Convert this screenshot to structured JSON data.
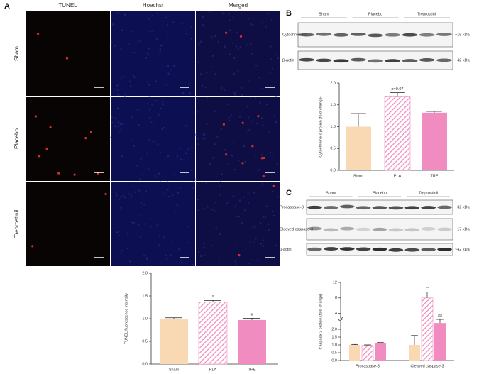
{
  "panel_labels": [
    "A",
    "B",
    "C"
  ],
  "microscopy": {
    "columns": [
      "TUNEL",
      "Hoechst",
      "Merged"
    ],
    "rows": [
      "Sham",
      "Placebo",
      "Treprostinil"
    ]
  },
  "blot_b": {
    "groups": [
      "Sham",
      "Placebo",
      "Treprostinil"
    ],
    "bands": [
      {
        "name": "Cytochrome c",
        "size": "~15 kDa"
      },
      {
        "name": "β-actin",
        "size": "~42 kDa"
      }
    ]
  },
  "blot_c": {
    "groups": [
      "Sham",
      "Placebo",
      "Treprostinil"
    ],
    "bands": [
      {
        "name": "Procaspase-3",
        "size": "~32 kDa"
      },
      {
        "name": "Cleaved caspase-3",
        "size": "~17 kDa"
      },
      {
        "name": "β-actin",
        "size": "~42 kDa"
      }
    ]
  },
  "chart_data": [
    {
      "type": "bar",
      "ylabel": "TUNEL fluorescence intensity",
      "categories": [
        "Sham",
        "PLA",
        "TRE"
      ],
      "values": [
        1.0,
        1.37,
        0.97
      ],
      "errors": [
        0.02,
        0.03,
        0.04
      ],
      "colors": [
        "#f9d8b4",
        "#f08cbf",
        "#f08cbf"
      ],
      "hatched": [
        false,
        true,
        false
      ],
      "annotations": [
        null,
        "*",
        "#"
      ],
      "ylim": [
        0,
        2
      ],
      "yticks": [
        {
          "value": 0,
          "label": "0.0"
        },
        {
          "value": 0.5,
          "label": "0.5"
        },
        {
          "value": 1,
          "label": "1.0"
        },
        {
          "value": 1.5,
          "label": "1.5"
        },
        {
          "value": 2,
          "label": "2.0"
        }
      ]
    },
    {
      "type": "bar",
      "ylabel": "Cytochrome c protein (fold-change)",
      "categories": [
        "Sham",
        "PLA",
        "TRE"
      ],
      "values": [
        1.0,
        1.7,
        1.32
      ],
      "errors": [
        0.3,
        0.08,
        0.03
      ],
      "colors": [
        "#f9d8b4",
        "#f08cbf",
        "#f08cbf"
      ],
      "hatched": [
        false,
        true,
        false
      ],
      "annotations": [
        null,
        "p=0.07",
        null
      ],
      "ylim": [
        0,
        2
      ],
      "yticks": [
        {
          "value": 0,
          "label": "0.0"
        },
        {
          "value": 0.5,
          "label": "0.5"
        },
        {
          "value": 1,
          "label": "1.0"
        },
        {
          "value": 1.5,
          "label": "1.5"
        },
        {
          "value": 2,
          "label": "2.0"
        }
      ]
    },
    {
      "type": "grouped_bar",
      "ylabel": "Caspase-3 protein (fold-change)",
      "categories": [
        "Procaspase-3",
        "Cleaved caspase-3"
      ],
      "series": [
        {
          "color": "#f9d8b4",
          "hatched": false,
          "values": [
            1.0,
            1.0
          ],
          "errors": [
            0.03,
            0.6
          ],
          "annotations": [
            null,
            null
          ]
        },
        {
          "color": "#f08cbf",
          "hatched": true,
          "values": [
            0.97,
            8.0
          ],
          "errors": [
            0.03,
            1.5
          ],
          "annotations": [
            null,
            "**"
          ]
        },
        {
          "color": "#f08cbf",
          "hatched": false,
          "values": [
            1.1,
            2.4
          ],
          "errors": [
            0.05,
            0.4
          ],
          "annotations": [
            null,
            "##"
          ]
        }
      ],
      "ylim": [
        0,
        12
      ],
      "axis_break": [
        2.5,
        3
      ],
      "yticks": [
        {
          "value": 0,
          "label": "0.0"
        },
        {
          "value": 0.5,
          "label": "0.5"
        },
        {
          "value": 1,
          "label": "1.0"
        },
        {
          "value": 1.5,
          "label": "1.5"
        },
        {
          "value": 2,
          "label": "2.0"
        },
        4,
        8,
        12
      ]
    }
  ]
}
